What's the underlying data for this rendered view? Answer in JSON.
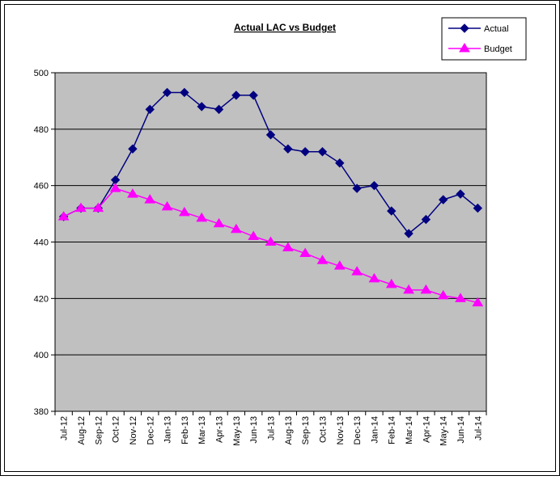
{
  "chart_data": {
    "type": "line",
    "title": "Actual LAC vs Budget",
    "categories": [
      "Jul-12",
      "Aug-12",
      "Sep-12",
      "Oct-12",
      "Nov-12",
      "Dec-12",
      "Jan-13",
      "Feb-13",
      "Mar-13",
      "Apr-13",
      "May-13",
      "Jun-13",
      "Jul-13",
      "Aug-13",
      "Sep-13",
      "Oct-13",
      "Nov-13",
      "Dec-13",
      "Jan-14",
      "Feb-14",
      "Mar-14",
      "Apr-14",
      "May-14",
      "Jun-14",
      "Jul-14"
    ],
    "series": [
      {
        "name": "Actual",
        "color": "#000080",
        "marker": "diamond",
        "values": [
          449,
          452,
          452,
          462,
          473,
          487,
          493,
          493,
          488,
          487,
          492,
          492,
          478,
          473,
          472,
          472,
          468,
          459,
          460,
          451,
          443,
          448,
          455,
          457,
          452
        ]
      },
      {
        "name": "Budget",
        "color": "#ff00ff",
        "marker": "triangle",
        "values": [
          449,
          452,
          452,
          459,
          457,
          455,
          452.5,
          450.5,
          448.5,
          446.5,
          444.5,
          442,
          440,
          438,
          436,
          433.5,
          431.5,
          429.5,
          427,
          425,
          423,
          423,
          421,
          420,
          418.5
        ]
      }
    ],
    "ylim": [
      380,
      500
    ],
    "yticks": [
      380,
      400,
      420,
      440,
      460,
      480,
      500
    ],
    "grid": true,
    "legend": "top-right",
    "plot_background": "#c0c0c0"
  }
}
